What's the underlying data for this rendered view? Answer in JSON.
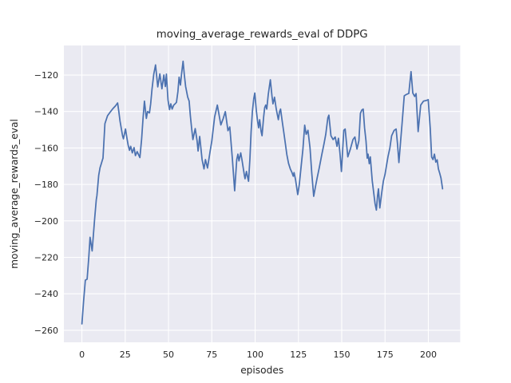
{
  "chart_data": {
    "type": "line",
    "title": "moving_average_rewards_eval of DDPG",
    "xlabel": "episodes",
    "ylabel": "moving_average_rewards_eval",
    "x_ticks": [
      0,
      25,
      50,
      75,
      100,
      125,
      150,
      175,
      200
    ],
    "y_ticks": [
      -260,
      -240,
      -220,
      -200,
      -180,
      -160,
      -140,
      -120
    ],
    "xlim": [
      -10.4,
      218.4
    ],
    "ylim": [
      -266.6,
      -103.8
    ],
    "grid": true,
    "legend": null,
    "style": {
      "figure_bg": "#ffffff",
      "axes_bg": "#eaeaf2",
      "grid_color": "#ffffff",
      "line_color": "#4c72b0",
      "text_color": "#262626",
      "line_width": 1.75
    },
    "series": [
      {
        "name": "moving_average_rewards_eval",
        "x": [
          0,
          1,
          2,
          3,
          4,
          4.7,
          5.9,
          7.4,
          8.3,
          8.7,
          9.7,
          10.5,
          11,
          11.9,
          12.2,
          13.3,
          14.8,
          16.3,
          17.9,
          19.4,
          20.6,
          21.3,
          22,
          23.5,
          24,
          25.2,
          26,
          26.7,
          27.5,
          28.2,
          29.1,
          30.1,
          30.9,
          31.9,
          32.6,
          33.5,
          34.5,
          35.3,
          36.1,
          37.2,
          37.9,
          39,
          39.7,
          40.5,
          41.5,
          42.5,
          43.8,
          45,
          46.2,
          47.3,
          48.2,
          48.8,
          49.7,
          50.6,
          51.3,
          52.1,
          53,
          54,
          54.6,
          55.4,
          56.1,
          56.9,
          57.6,
          58.4,
          59.1,
          59.9,
          61.1,
          61.9,
          62.6,
          63.4,
          64.1,
          65.4,
          66.5,
          67.1,
          68,
          69.4,
          70.5,
          71.3,
          72.5,
          74,
          75,
          76.6,
          78.2,
          80.2,
          81.6,
          82.8,
          84.3,
          85.4,
          86.9,
          88.2,
          89.4,
          90.1,
          90.7,
          91.7,
          92.4,
          93.8,
          94.2,
          95,
          95.8,
          96.2,
          97,
          97.7,
          98.4,
          99.2,
          99.8,
          100.7,
          101.4,
          102,
          102.6,
          103.5,
          104,
          104.9,
          105.5,
          106.1,
          106.7,
          107.6,
          108.8,
          109.7,
          110.3,
          111.2,
          112.2,
          113.4,
          114.1,
          114.7,
          115.6,
          116.5,
          117.5,
          118.3,
          119.3,
          120.3,
          121.3,
          122,
          122.5,
          123.3,
          124.6,
          125.5,
          126.5,
          127.6,
          128.6,
          129.5,
          130.5,
          131.7,
          132.7,
          133.8,
          134.9,
          135.8,
          137,
          138.5,
          139.8,
          140.8,
          142,
          142.6,
          143.8,
          145,
          146.2,
          147.3,
          148.1,
          149,
          149.8,
          151.2,
          152,
          153.5,
          155,
          156.5,
          157.6,
          158.8,
          159.9,
          160.8,
          161.6,
          162.4,
          163.2,
          164,
          164.7,
          165.2,
          165.9,
          166.5,
          167.6,
          168.4,
          169.2,
          170,
          170.7,
          171.2,
          172,
          173.2,
          174,
          175,
          175.9,
          176.7,
          177.8,
          178.8,
          180.3,
          181.4,
          182.2,
          183,
          184,
          184.9,
          186.1,
          187.2,
          188.7,
          190,
          191,
          192.1,
          192.9,
          194.1,
          195.6,
          197.2,
          198.7,
          199.9,
          201.1,
          201.9,
          202.7,
          203.5,
          204.3,
          205.1,
          205.8,
          206.5,
          207.3,
          208.2
        ],
        "y": [
          -256.5,
          -244,
          -232.5,
          -232,
          -220,
          -209,
          -216.5,
          -198.5,
          -188.3,
          -186.1,
          -175.1,
          -170.8,
          -169.3,
          -166.4,
          -165.6,
          -146.7,
          -142.3,
          -140.4,
          -138.4,
          -136.9,
          -135.3,
          -140,
          -145.2,
          -153.3,
          -155,
          -149.6,
          -154.7,
          -158.4,
          -161.3,
          -159.1,
          -162.7,
          -159.8,
          -164.2,
          -162,
          -163.5,
          -165.3,
          -155,
          -144,
          -134.3,
          -143.8,
          -140.1,
          -140.8,
          -135.8,
          -127.7,
          -119.5,
          -114.5,
          -126.5,
          -119.4,
          -127.5,
          -120,
          -126.3,
          -119.5,
          -133.6,
          -139,
          -135.8,
          -138.7,
          -136.5,
          -135.6,
          -135,
          -129.2,
          -121.2,
          -125.5,
          -119,
          -112.4,
          -119.7,
          -126.3,
          -132.1,
          -134.3,
          -142.3,
          -149.6,
          -155.4,
          -149.4,
          -156,
          -161.7,
          -153.7,
          -166.4,
          -171.5,
          -166.4,
          -171,
          -162,
          -156.2,
          -143,
          -136.5,
          -147.4,
          -143.8,
          -140.1,
          -150.5,
          -148.5,
          -166.4,
          -183.5,
          -166.4,
          -163.4,
          -167.1,
          -162.7,
          -166.4,
          -175.1,
          -176.9,
          -172.9,
          -176.6,
          -178.3,
          -166,
          -151,
          -140,
          -133,
          -129.9,
          -139.4,
          -145.2,
          -148.9,
          -144.5,
          -151.1,
          -153.3,
          -143,
          -137.9,
          -136.5,
          -138.7,
          -130.6,
          -122.6,
          -131.4,
          -135.8,
          -132.2,
          -138.7,
          -144.5,
          -140.1,
          -138.7,
          -145.2,
          -151,
          -158,
          -163.5,
          -168.5,
          -171.5,
          -173.5,
          -175.5,
          -173.5,
          -177.3,
          -185.6,
          -180.2,
          -170.8,
          -160.6,
          -147.5,
          -152.5,
          -150.3,
          -160,
          -174,
          -186.5,
          -181,
          -176.5,
          -171,
          -163.5,
          -157.5,
          -152.5,
          -143.5,
          -142,
          -153.3,
          -155.4,
          -154,
          -159.1,
          -154.7,
          -163,
          -172.9,
          -150.3,
          -149.6,
          -164.9,
          -160.6,
          -155.4,
          -154,
          -160.6,
          -156,
          -141,
          -139.2,
          -138.7,
          -148.9,
          -156.2,
          -165.6,
          -163.4,
          -168.6,
          -164.9,
          -178,
          -184,
          -190.4,
          -194.1,
          -186.1,
          -182.4,
          -192.9,
          -183.9,
          -178.3,
          -174.5,
          -169.3,
          -164.9,
          -160,
          -153.3,
          -150.3,
          -149.6,
          -158,
          -168,
          -156,
          -145.9,
          -131.4,
          -130.7,
          -130.1,
          -118.1,
          -129.9,
          -131.7,
          -130.2,
          -151,
          -136.5,
          -134.3,
          -134,
          -133.5,
          -149.5,
          -165,
          -166.4,
          -163.4,
          -167.8,
          -166.5,
          -171.5,
          -173.7,
          -176.5,
          -182.4
        ]
      }
    ]
  }
}
